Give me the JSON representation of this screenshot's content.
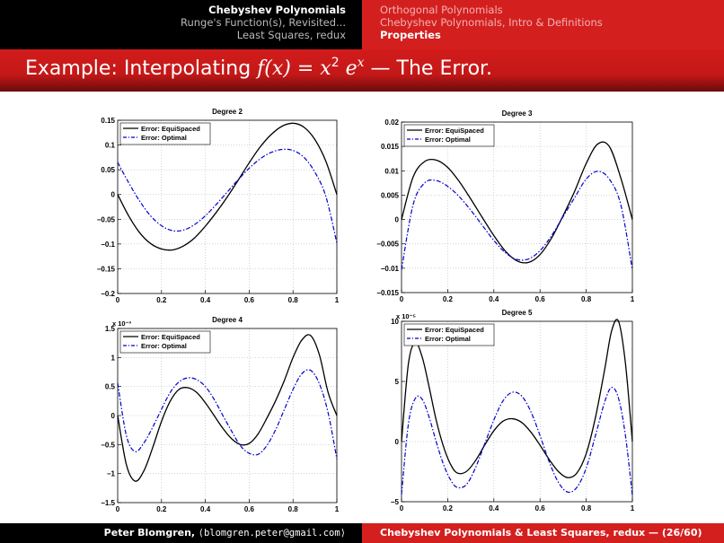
{
  "header": {
    "left_items": [
      "Chebyshev Polynomials",
      "Runge's Function(s), Revisited...",
      "Least Squares, redux"
    ],
    "left_active": 0,
    "right_items": [
      "Orthogonal Polynomials",
      "Chebyshev Polynomials, Intro & Definitions",
      "Properties"
    ],
    "right_active": 2
  },
  "slide": {
    "title_prefix": "Example: Interpolating ",
    "title_fx": "f(x) = x",
    "title_exp1": "2",
    "title_e": " e",
    "title_exp2": "x",
    "title_suffix": " — The Error."
  },
  "footer": {
    "author": "Peter Blomgren,",
    "email": "⟨blomgren.peter@gmail.com⟩",
    "right": "Chebyshev Polynomials & Least Squares, redux",
    "page": "— (26/60)"
  },
  "colors": {
    "equispaced": "#000000",
    "optimal": "#0000cc",
    "brand_red": "#d41f1f"
  },
  "chart_data": [
    {
      "type": "line",
      "title": "Degree 2",
      "xlim": [
        0,
        1
      ],
      "ylim": [
        -0.2,
        0.15
      ],
      "xticks": [
        "0",
        "0.2",
        "0.4",
        "0.6",
        "0.8",
        "1"
      ],
      "yticks": [
        "−0.2",
        "−0.15",
        "−0.1",
        "−0.05",
        "0",
        "0.05",
        "0.1",
        "0.15"
      ],
      "ytick_values": [
        -0.2,
        -0.15,
        -0.1,
        -0.05,
        0,
        0.05,
        0.1,
        0.15
      ],
      "exponent": "",
      "grid": true,
      "legend_position": "top-left",
      "x": [
        0,
        0.05,
        0.1,
        0.15,
        0.2,
        0.25,
        0.3,
        0.35,
        0.4,
        0.45,
        0.5,
        0.55,
        0.6,
        0.65,
        0.7,
        0.75,
        0.8,
        0.85,
        0.9,
        0.95,
        1
      ],
      "series": [
        {
          "name": "Error: EquiSpaced",
          "style": "solid",
          "values": [
            0,
            -0.043,
            -0.077,
            -0.099,
            -0.11,
            -0.112,
            -0.104,
            -0.088,
            -0.064,
            -0.036,
            -0.005,
            0.029,
            0.064,
            0.096,
            0.121,
            0.138,
            0.144,
            0.136,
            0.111,
            0.067,
            0
          ]
        },
        {
          "name": "Error: Optimal",
          "style": "dashdot",
          "values": [
            0.065,
            0.024,
            -0.013,
            -0.043,
            -0.063,
            -0.073,
            -0.072,
            -0.061,
            -0.043,
            -0.02,
            0.005,
            0.03,
            0.053,
            0.072,
            0.085,
            0.091,
            0.089,
            0.075,
            0.045,
            -0.004,
            -0.098
          ]
        }
      ]
    },
    {
      "type": "line",
      "title": "Degree 3",
      "xlim": [
        0,
        1
      ],
      "ylim": [
        -0.015,
        0.02
      ],
      "xticks": [
        "0",
        "0.2",
        "0.4",
        "0.6",
        "0.8",
        "1"
      ],
      "yticks": [
        "−0.015",
        "−0.01",
        "−0.005",
        "0",
        "0.005",
        "0.01",
        "0.015",
        "0.02"
      ],
      "ytick_values": [
        -0.015,
        -0.01,
        -0.005,
        0,
        0.005,
        0.01,
        0.015,
        0.02
      ],
      "exponent": "",
      "grid": true,
      "legend_position": "top-left",
      "x": [
        0,
        0.05,
        0.1,
        0.15,
        0.2,
        0.25,
        0.3,
        0.35,
        0.4,
        0.45,
        0.5,
        0.55,
        0.6,
        0.65,
        0.7,
        0.75,
        0.8,
        0.85,
        0.9,
        0.95,
        1
      ],
      "series": [
        {
          "name": "Error: EquiSpaced",
          "style": "solid",
          "values": [
            0,
            0.0087,
            0.0119,
            0.0122,
            0.0107,
            0.0078,
            0.0042,
            0.0004,
            -0.0033,
            -0.0065,
            -0.0085,
            -0.0088,
            -0.0072,
            -0.0038,
            0.0008,
            0.0058,
            0.0115,
            0.0155,
            0.015,
            0.0085,
            0
          ]
        },
        {
          "name": "Error: Optimal",
          "style": "dashdot",
          "values": [
            -0.0103,
            0.003,
            0.0075,
            0.008,
            0.0068,
            0.0047,
            0.0019,
            -0.0012,
            -0.0043,
            -0.0068,
            -0.0082,
            -0.0081,
            -0.0064,
            -0.0033,
            0.0006,
            0.0045,
            0.0083,
            0.0099,
            0.0083,
            0.003,
            -0.0103
          ]
        }
      ]
    },
    {
      "type": "line",
      "title": "Degree 4",
      "xlim": [
        0,
        1
      ],
      "ylim": [
        -1.5,
        1.5
      ],
      "xticks": [
        "0",
        "0.2",
        "0.4",
        "0.6",
        "0.8",
        "1"
      ],
      "yticks": [
        "−1.5",
        "−1",
        "−0.5",
        "0",
        "0.5",
        "1",
        "1.5"
      ],
      "ytick_values": [
        -1.5,
        -1,
        -0.5,
        0,
        0.5,
        1,
        1.5
      ],
      "exponent": "x 10⁻³",
      "grid": true,
      "legend_position": "top-left",
      "x": [
        0,
        0.04,
        0.08,
        0.12,
        0.16,
        0.2,
        0.24,
        0.28,
        0.32,
        0.36,
        0.4,
        0.44,
        0.48,
        0.52,
        0.56,
        0.6,
        0.64,
        0.68,
        0.72,
        0.76,
        0.8,
        0.84,
        0.88,
        0.92,
        0.96,
        1
      ],
      "series": [
        {
          "name": "Error: EquiSpaced",
          "style": "solid",
          "values": [
            0,
            -0.85,
            -1.13,
            -0.95,
            -0.55,
            -0.1,
            0.25,
            0.45,
            0.48,
            0.4,
            0.22,
            0.0,
            -0.22,
            -0.4,
            -0.5,
            -0.48,
            -0.32,
            -0.05,
            0.25,
            0.6,
            1.0,
            1.3,
            1.38,
            1.05,
            0.4,
            0
          ]
        },
        {
          "name": "Error: Optimal",
          "style": "dashdot",
          "values": [
            0.56,
            -0.35,
            -0.62,
            -0.47,
            -0.2,
            0.11,
            0.4,
            0.58,
            0.65,
            0.62,
            0.5,
            0.28,
            0.0,
            -0.27,
            -0.52,
            -0.65,
            -0.67,
            -0.52,
            -0.25,
            0.1,
            0.45,
            0.72,
            0.78,
            0.55,
            0.05,
            -0.75
          ]
        }
      ]
    },
    {
      "type": "line",
      "title": "Degree 5",
      "xlim": [
        0,
        1
      ],
      "ylim": [
        -5,
        10
      ],
      "xticks": [
        "0",
        "0.2",
        "0.4",
        "0.6",
        "0.8",
        "1"
      ],
      "yticks": [
        "−5",
        "0",
        "5",
        "10"
      ],
      "ytick_values": [
        -5,
        0,
        5,
        10
      ],
      "exponent": "x 10⁻⁵",
      "grid": true,
      "legend_position": "top-left",
      "x": [
        0,
        0.03,
        0.06,
        0.09,
        0.12,
        0.15,
        0.18,
        0.21,
        0.24,
        0.28,
        0.32,
        0.36,
        0.4,
        0.44,
        0.48,
        0.52,
        0.56,
        0.6,
        0.64,
        0.68,
        0.72,
        0.76,
        0.8,
        0.84,
        0.88,
        0.91,
        0.94,
        0.97,
        1
      ],
      "series": [
        {
          "name": "Error: EquiSpaced",
          "style": "solid",
          "values": [
            0,
            6.5,
            8.2,
            7.0,
            4.5,
            1.8,
            -0.3,
            -1.8,
            -2.6,
            -2.5,
            -1.6,
            -0.3,
            0.9,
            1.7,
            1.9,
            1.6,
            0.8,
            -0.3,
            -1.5,
            -2.5,
            -3.0,
            -2.6,
            -1.0,
            2.0,
            6.0,
            9.2,
            10.0,
            6.5,
            0
          ]
        },
        {
          "name": "Error: Optimal",
          "style": "dashdot",
          "values": [
            -4.4,
            1.5,
            3.6,
            3.5,
            2.0,
            0.0,
            -1.8,
            -3.1,
            -3.8,
            -3.6,
            -2.2,
            -0.2,
            1.8,
            3.4,
            4.1,
            3.8,
            2.5,
            0.5,
            -1.7,
            -3.4,
            -4.2,
            -3.8,
            -2.2,
            0.5,
            3.3,
            4.5,
            3.6,
            0.5,
            -4.5
          ]
        }
      ]
    }
  ]
}
